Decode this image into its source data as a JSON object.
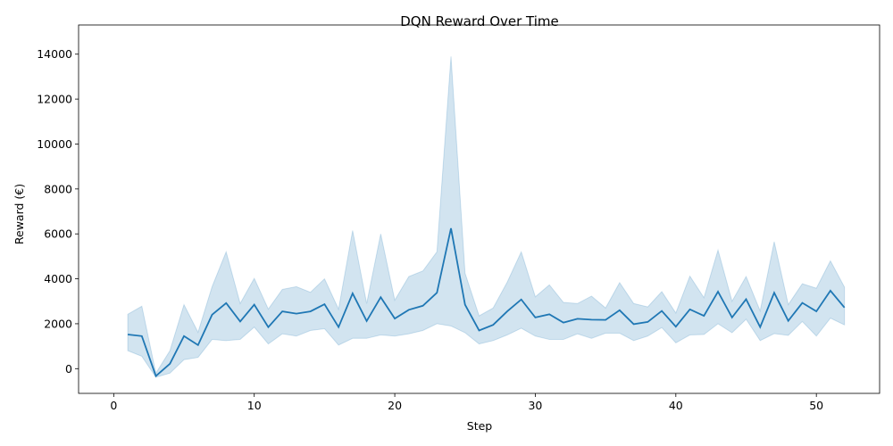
{
  "chart_data": {
    "type": "line",
    "title": "DQN Reward Over Time",
    "xlabel": "Step",
    "ylabel": "Reward (€)",
    "xlim": [
      -2.5,
      54.5
    ],
    "ylim": [
      -1100,
      15300
    ],
    "xticks": [
      0,
      10,
      20,
      30,
      40,
      50
    ],
    "yticks": [
      0,
      2000,
      4000,
      6000,
      8000,
      10000,
      12000,
      14000
    ],
    "grid": false,
    "legend": "none",
    "line_color": "#1f77b4",
    "band_color": "#1f77b4",
    "series": [
      {
        "x": [
          1,
          2,
          3,
          4,
          5,
          6,
          7,
          8,
          9,
          10,
          11,
          12,
          13,
          14,
          15,
          16,
          17,
          18,
          19,
          20,
          21,
          22,
          23,
          24,
          25,
          26,
          27,
          28,
          29,
          30,
          31,
          32,
          33,
          34,
          35,
          36,
          37,
          38,
          39,
          40,
          41,
          42,
          43,
          44,
          45,
          46,
          47,
          48,
          49,
          50,
          51,
          52
        ],
        "mean": [
          1520,
          1450,
          -330,
          220,
          1450,
          1050,
          2400,
          2920,
          2100,
          2850,
          1850,
          2550,
          2450,
          2550,
          2870,
          1850,
          3350,
          2120,
          3180,
          2230,
          2620,
          2800,
          3380,
          6250,
          2850,
          1700,
          1950,
          2550,
          3080,
          2280,
          2420,
          2050,
          2220,
          2180,
          2170,
          2600,
          1980,
          2080,
          2570,
          1870,
          2640,
          2350,
          3430,
          2280,
          3090,
          1850,
          3380,
          2130,
          2930,
          2550,
          3470,
          2720
        ],
        "lower": [
          800,
          550,
          -380,
          -200,
          400,
          500,
          1300,
          1250,
          1300,
          1850,
          1100,
          1550,
          1450,
          1700,
          1780,
          1050,
          1350,
          1350,
          1500,
          1450,
          1550,
          1700,
          2000,
          1900,
          1600,
          1100,
          1250,
          1500,
          1800,
          1450,
          1300,
          1300,
          1550,
          1350,
          1580,
          1580,
          1250,
          1450,
          1830,
          1150,
          1500,
          1520,
          2000,
          1600,
          2200,
          1250,
          1560,
          1480,
          2100,
          1450,
          2250,
          1950
        ],
        "upper": [
          2420,
          2780,
          -200,
          800,
          2850,
          1620,
          3650,
          5200,
          2900,
          4020,
          2650,
          3530,
          3650,
          3400,
          4000,
          2650,
          6150,
          2900,
          6000,
          3050,
          4100,
          4350,
          5200,
          13900,
          4250,
          2350,
          2700,
          3850,
          5200,
          3200,
          3730,
          2950,
          2900,
          3230,
          2700,
          3830,
          2900,
          2750,
          3430,
          2480,
          4120,
          3160,
          5280,
          3000,
          4100,
          2570,
          5650,
          2850,
          3780,
          3580,
          4800,
          3630
        ]
      }
    ]
  }
}
